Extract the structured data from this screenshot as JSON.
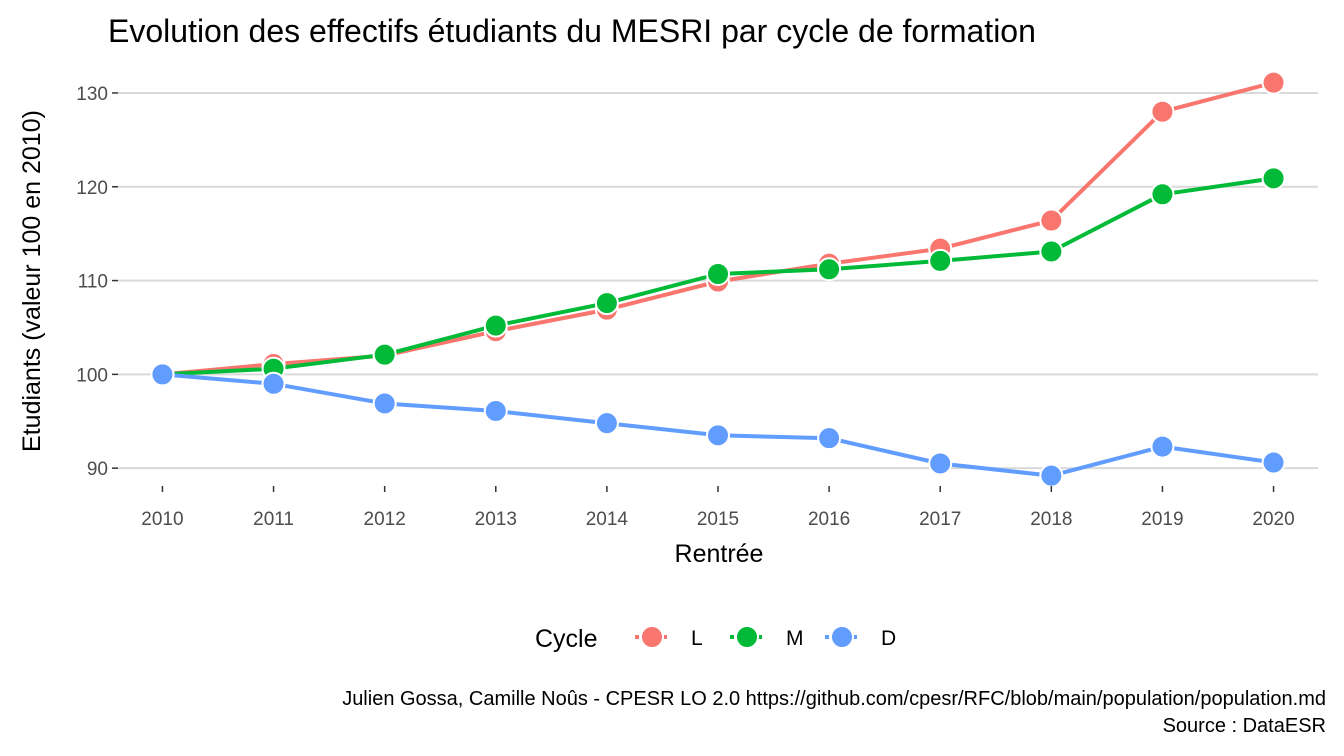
{
  "chart_data": {
    "type": "line",
    "title": "Evolution des effectifs étudiants du MESRI par cycle de formation",
    "xlabel": "Rentrée",
    "ylabel": "Etudiants (valeur 100 en 2010)",
    "x": [
      2010,
      2011,
      2012,
      2013,
      2014,
      2015,
      2016,
      2017,
      2018,
      2019,
      2020
    ],
    "x_ticks": [
      "2010",
      "2011",
      "2012",
      "2013",
      "2014",
      "2015",
      "2016",
      "2017",
      "2018",
      "2019",
      "2020"
    ],
    "y_ticks": [
      90,
      100,
      110,
      120,
      130
    ],
    "y_tick_labels": [
      "90",
      "100",
      "110",
      "120",
      "130"
    ],
    "xlim": [
      2009.6,
      2020.4
    ],
    "ylim": [
      88.1,
      133.3
    ],
    "grid": true,
    "legend": {
      "title": "Cycle",
      "position": "bottom"
    },
    "series": [
      {
        "name": "L",
        "color": "#F8766D",
        "values": [
          100.0,
          101.1,
          102.0,
          104.6,
          106.9,
          109.9,
          111.8,
          113.4,
          116.4,
          128.0,
          131.1
        ]
      },
      {
        "name": "M",
        "color": "#00BA38",
        "values": [
          100.0,
          100.6,
          102.1,
          105.2,
          107.6,
          110.7,
          111.2,
          112.1,
          113.1,
          119.2,
          120.9
        ]
      },
      {
        "name": "D",
        "color": "#619CFF",
        "values": [
          100.0,
          99.0,
          96.9,
          96.1,
          94.8,
          93.5,
          93.2,
          90.5,
          89.2,
          92.3,
          90.6
        ]
      }
    ]
  },
  "caption": {
    "line1": "Julien Gossa, Camille Noûs - CPESR LO 2.0 https://github.com/cpesr/RFC/blob/main/population/population.md",
    "line2": "Source : DataESR"
  }
}
